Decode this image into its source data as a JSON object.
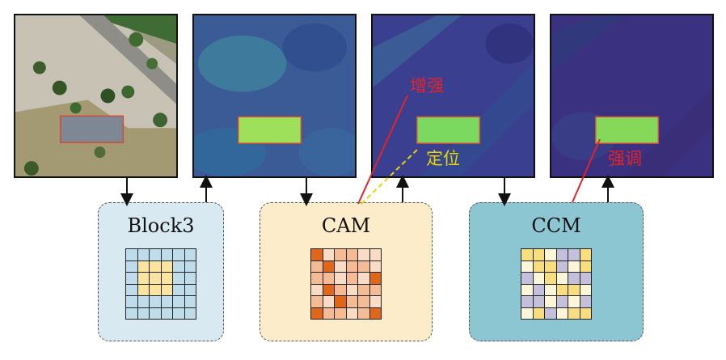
{
  "modules": {
    "block3": {
      "title": "Block3"
    },
    "cam": {
      "title": "CAM"
    },
    "ccm": {
      "title": "CCM"
    }
  },
  "annotations": {
    "enhance": "增强",
    "locate": "定位",
    "emphasize": "强调"
  },
  "colors": {
    "enhance": "#e0242a",
    "locate": "#e8d400",
    "emphasize": "#e0242a",
    "block3_bg": "#d9e9f2",
    "cam_bg": "#fcecc9",
    "ccm_bg": "#8cc6d3",
    "grid_blue": "#bfdcea",
    "grid_yellow": "#fbe3a0",
    "cam_light": "#f9dcc6",
    "cam_mid": "#f4bb95",
    "cam_dark": "#e0661a",
    "ccm_cream": "#fbf6d8",
    "ccm_yellow": "#f8de7e",
    "ccm_lavender": "#c4bfdb"
  },
  "grids": {
    "block3": [
      [
        0,
        0,
        0,
        0,
        0,
        0
      ],
      [
        0,
        1,
        1,
        1,
        0,
        0
      ],
      [
        0,
        1,
        1,
        1,
        0,
        0
      ],
      [
        0,
        1,
        1,
        1,
        0,
        0
      ],
      [
        0,
        0,
        0,
        0,
        0,
        0
      ],
      [
        0,
        0,
        0,
        0,
        0,
        0
      ]
    ],
    "cam": [
      [
        2,
        0,
        1,
        1,
        0,
        0
      ],
      [
        1,
        2,
        0,
        1,
        1,
        0
      ],
      [
        1,
        1,
        0,
        1,
        0,
        2
      ],
      [
        0,
        2,
        1,
        0,
        1,
        1
      ],
      [
        1,
        0,
        2,
        1,
        1,
        0
      ],
      [
        2,
        1,
        1,
        0,
        1,
        2
      ]
    ],
    "ccm": [
      [
        1,
        1,
        0,
        2,
        2,
        1
      ],
      [
        0,
        1,
        1,
        2,
        0,
        1
      ],
      [
        2,
        0,
        1,
        0,
        2,
        2
      ],
      [
        0,
        2,
        0,
        1,
        1,
        0
      ],
      [
        2,
        2,
        0,
        2,
        0,
        2
      ],
      [
        0,
        1,
        2,
        0,
        1,
        1
      ]
    ]
  },
  "heatmaps": {
    "block3": {
      "bg": "#3a5b96",
      "target": "#9fe05a",
      "target_edge": "#5ab37d"
    },
    "cam": {
      "bg": "#3b3f8f",
      "target": "#7cd960",
      "target_edge": "#37b47e"
    },
    "ccm": {
      "bg": "#3a3180",
      "target": "#86d85a",
      "target_edge": "#2fa37f"
    }
  }
}
